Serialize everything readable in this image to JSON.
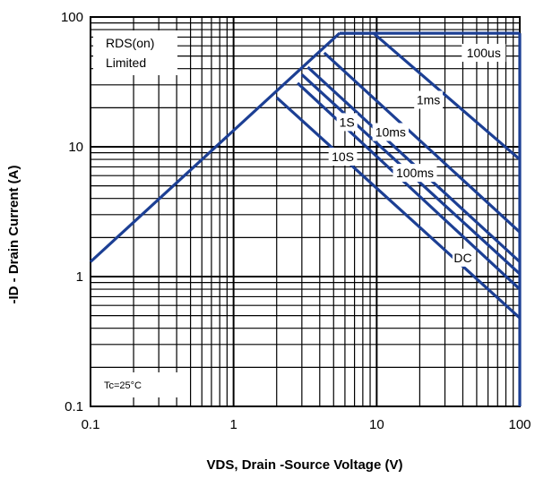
{
  "chart_data": {
    "type": "line",
    "title": "",
    "xlabel": "VDS, Drain -Source Voltage (V)",
    "ylabel": "-ID - Drain Current (A)",
    "xscale": "log",
    "yscale": "log",
    "xlim": [
      0.1,
      100
    ],
    "ylim": [
      0.1,
      100
    ],
    "grid": true,
    "x_tick_labels": [
      "0.1",
      "1",
      "10",
      "100"
    ],
    "y_tick_labels": [
      "0.1",
      "1",
      "10",
      "100"
    ],
    "annotations": {
      "rds_line1": "RDS(on)",
      "rds_line2": "Limited",
      "temperature": "Tc=25°C"
    },
    "series": [
      {
        "name": "RDS(on) Limited",
        "x": [
          0.1,
          5.5
        ],
        "y": [
          1.3,
          75
        ]
      },
      {
        "name": "100us",
        "x": [
          5.5,
          100
        ],
        "y": [
          75,
          75
        ]
      },
      {
        "name": "1ms",
        "x": [
          5.5,
          9.5,
          100
        ],
        "y": [
          75,
          75,
          8
        ]
      },
      {
        "name": "10ms",
        "x": [
          4.3,
          100
        ],
        "y": [
          53,
          2.2
        ]
      },
      {
        "name": "100ms",
        "x": [
          3.3,
          100
        ],
        "y": [
          41,
          1.3
        ]
      },
      {
        "name": "1S",
        "x": [
          3.0,
          100
        ],
        "y": [
          36,
          1.05
        ]
      },
      {
        "name": "10S",
        "x": [
          2.8,
          100
        ],
        "y": [
          31,
          0.8
        ]
      },
      {
        "name": "DC",
        "x": [
          2.0,
          100
        ],
        "y": [
          24,
          0.48
        ]
      }
    ],
    "colors": {
      "curve": "#1c3f94",
      "grid": "#000000",
      "label_bg": "#ffffff"
    }
  }
}
